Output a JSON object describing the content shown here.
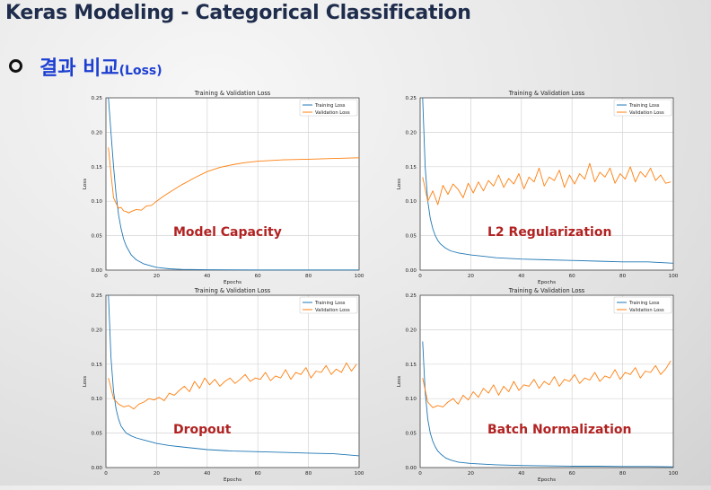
{
  "header": {
    "title": "Keras Modeling - Categorical Classification",
    "subtitle_ko": "결과 비교",
    "subtitle_paren": "(Loss)"
  },
  "chart_data": [
    {
      "type": "line",
      "title": "Training & Validation Loss",
      "xlabel": "Epochs",
      "ylabel": "Loss",
      "xlim": [
        0,
        100
      ],
      "ylim": [
        0,
        0.25
      ],
      "grid": true,
      "legend": "top-right",
      "annotation": "Model Capacity",
      "series": [
        {
          "name": "Training Loss",
          "color": "#1f77b4",
          "x": [
            1,
            2,
            3,
            4,
            5,
            6,
            7,
            8,
            10,
            12,
            15,
            18,
            20,
            25,
            30,
            40,
            60,
            80,
            100
          ],
          "values": [
            0.25,
            0.2,
            0.15,
            0.11,
            0.08,
            0.06,
            0.045,
            0.035,
            0.022,
            0.015,
            0.009,
            0.006,
            0.004,
            0.002,
            0.001,
            0.0005,
            0.0003,
            0.0002,
            0.0002
          ]
        },
        {
          "name": "Validation Loss",
          "color": "#ff7f0e",
          "x": [
            1,
            2,
            3,
            4,
            5,
            6,
            7,
            8,
            9,
            10,
            12,
            14,
            16,
            18,
            20,
            23,
            26,
            30,
            35,
            40,
            45,
            50,
            55,
            60,
            70,
            80,
            90,
            100
          ],
          "values": [
            0.178,
            0.14,
            0.105,
            0.097,
            0.09,
            0.091,
            0.086,
            0.085,
            0.083,
            0.085,
            0.088,
            0.087,
            0.093,
            0.094,
            0.1,
            0.108,
            0.115,
            0.124,
            0.134,
            0.143,
            0.149,
            0.153,
            0.156,
            0.158,
            0.16,
            0.161,
            0.162,
            0.163
          ]
        }
      ]
    },
    {
      "type": "line",
      "title": "Training & Validation Loss",
      "xlabel": "Epochs",
      "ylabel": "Loss",
      "xlim": [
        0,
        100
      ],
      "ylim": [
        0,
        0.25
      ],
      "grid": true,
      "legend": "top-right",
      "annotation": "L2 Regularization",
      "series": [
        {
          "name": "Training Loss",
          "color": "#1f77b4",
          "x": [
            1,
            2,
            3,
            4,
            5,
            6,
            7,
            8,
            10,
            12,
            15,
            20,
            25,
            30,
            40,
            50,
            60,
            70,
            80,
            90,
            100
          ],
          "values": [
            0.25,
            0.15,
            0.1,
            0.075,
            0.06,
            0.05,
            0.043,
            0.038,
            0.032,
            0.028,
            0.025,
            0.022,
            0.02,
            0.018,
            0.016,
            0.015,
            0.014,
            0.013,
            0.012,
            0.012,
            0.01
          ]
        },
        {
          "name": "Validation Loss",
          "color": "#ff7f0e",
          "x": [
            1,
            3,
            5,
            7,
            9,
            11,
            13,
            15,
            17,
            19,
            21,
            23,
            25,
            27,
            29,
            31,
            33,
            35,
            37,
            39,
            41,
            43,
            45,
            47,
            49,
            51,
            53,
            55,
            57,
            59,
            61,
            63,
            65,
            67,
            69,
            71,
            73,
            75,
            77,
            79,
            81,
            83,
            85,
            87,
            89,
            91,
            93,
            95,
            97,
            99
          ],
          "values": [
            0.135,
            0.1,
            0.115,
            0.095,
            0.123,
            0.11,
            0.125,
            0.117,
            0.105,
            0.126,
            0.112,
            0.128,
            0.115,
            0.13,
            0.122,
            0.138,
            0.12,
            0.133,
            0.125,
            0.14,
            0.118,
            0.135,
            0.128,
            0.148,
            0.122,
            0.135,
            0.13,
            0.145,
            0.12,
            0.138,
            0.125,
            0.14,
            0.132,
            0.155,
            0.128,
            0.142,
            0.135,
            0.148,
            0.126,
            0.14,
            0.132,
            0.15,
            0.128,
            0.143,
            0.135,
            0.148,
            0.13,
            0.138,
            0.126,
            0.128
          ]
        }
      ]
    },
    {
      "type": "line",
      "title": "Training & Validation Loss",
      "xlabel": "Epochs",
      "ylabel": "Loss",
      "xlim": [
        0,
        100
      ],
      "ylim": [
        0,
        0.25
      ],
      "grid": true,
      "legend": "top-right",
      "annotation": "Dropout",
      "series": [
        {
          "name": "Training Loss",
          "color": "#1f77b4",
          "x": [
            1,
            2,
            3,
            4,
            5,
            6,
            7,
            8,
            10,
            12,
            15,
            18,
            20,
            25,
            30,
            35,
            40,
            50,
            60,
            70,
            80,
            90,
            100
          ],
          "values": [
            0.25,
            0.16,
            0.11,
            0.085,
            0.07,
            0.06,
            0.055,
            0.05,
            0.046,
            0.043,
            0.04,
            0.037,
            0.035,
            0.032,
            0.03,
            0.028,
            0.026,
            0.024,
            0.023,
            0.022,
            0.021,
            0.02,
            0.017
          ]
        },
        {
          "name": "Validation Loss",
          "color": "#ff7f0e",
          "x": [
            1,
            3,
            5,
            7,
            9,
            11,
            13,
            15,
            17,
            19,
            21,
            23,
            25,
            27,
            29,
            31,
            33,
            35,
            37,
            39,
            41,
            43,
            45,
            47,
            49,
            51,
            53,
            55,
            57,
            59,
            61,
            63,
            65,
            67,
            69,
            71,
            73,
            75,
            77,
            79,
            81,
            83,
            85,
            87,
            89,
            91,
            93,
            95,
            97,
            99
          ],
          "values": [
            0.13,
            0.1,
            0.092,
            0.088,
            0.09,
            0.085,
            0.092,
            0.095,
            0.1,
            0.098,
            0.102,
            0.097,
            0.108,
            0.105,
            0.112,
            0.118,
            0.11,
            0.125,
            0.115,
            0.13,
            0.12,
            0.128,
            0.118,
            0.125,
            0.13,
            0.122,
            0.128,
            0.135,
            0.125,
            0.13,
            0.128,
            0.138,
            0.126,
            0.133,
            0.13,
            0.142,
            0.128,
            0.138,
            0.135,
            0.145,
            0.13,
            0.14,
            0.138,
            0.148,
            0.135,
            0.143,
            0.138,
            0.152,
            0.14,
            0.15
          ]
        }
      ]
    },
    {
      "type": "line",
      "title": "Training & Validation Loss",
      "xlabel": "Epochs",
      "ylabel": "Loss",
      "xlim": [
        0,
        100
      ],
      "ylim": [
        0,
        0.25
      ],
      "grid": true,
      "legend": "top-right",
      "annotation": "Batch Normalization",
      "series": [
        {
          "name": "Training Loss",
          "color": "#1f77b4",
          "x": [
            1,
            2,
            3,
            4,
            5,
            6,
            7,
            8,
            10,
            12,
            15,
            20,
            25,
            30,
            40,
            50,
            60,
            70,
            80,
            90,
            100
          ],
          "values": [
            0.183,
            0.11,
            0.07,
            0.05,
            0.038,
            0.03,
            0.024,
            0.02,
            0.014,
            0.011,
            0.008,
            0.006,
            0.005,
            0.004,
            0.003,
            0.0025,
            0.002,
            0.002,
            0.0015,
            0.0015,
            0.001
          ]
        },
        {
          "name": "Validation Loss",
          "color": "#ff7f0e",
          "x": [
            1,
            3,
            5,
            7,
            9,
            11,
            13,
            15,
            17,
            19,
            21,
            23,
            25,
            27,
            29,
            31,
            33,
            35,
            37,
            39,
            41,
            43,
            45,
            47,
            49,
            51,
            53,
            55,
            57,
            59,
            61,
            63,
            65,
            67,
            69,
            71,
            73,
            75,
            77,
            79,
            81,
            83,
            85,
            87,
            89,
            91,
            93,
            95,
            97,
            99
          ],
          "values": [
            0.13,
            0.095,
            0.087,
            0.09,
            0.088,
            0.095,
            0.1,
            0.092,
            0.105,
            0.098,
            0.11,
            0.102,
            0.115,
            0.108,
            0.12,
            0.105,
            0.118,
            0.11,
            0.125,
            0.112,
            0.12,
            0.118,
            0.128,
            0.115,
            0.125,
            0.12,
            0.132,
            0.118,
            0.128,
            0.125,
            0.135,
            0.122,
            0.13,
            0.127,
            0.138,
            0.125,
            0.133,
            0.13,
            0.142,
            0.128,
            0.138,
            0.135,
            0.145,
            0.13,
            0.14,
            0.138,
            0.148,
            0.135,
            0.143,
            0.155
          ]
        }
      ]
    }
  ]
}
